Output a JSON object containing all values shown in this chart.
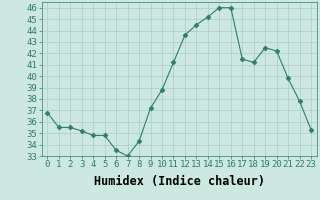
{
  "x": [
    0,
    1,
    2,
    3,
    4,
    5,
    6,
    7,
    8,
    9,
    10,
    11,
    12,
    13,
    14,
    15,
    16,
    17,
    18,
    19,
    20,
    21,
    22,
    23
  ],
  "y": [
    36.8,
    35.5,
    35.5,
    35.2,
    34.8,
    34.8,
    33.5,
    33.0,
    34.3,
    37.2,
    38.8,
    41.2,
    43.6,
    44.5,
    45.2,
    46.0,
    46.0,
    41.5,
    41.2,
    42.5,
    42.2,
    39.8,
    37.8,
    35.3
  ],
  "line_color": "#2e7d6e",
  "marker": "D",
  "marker_size": 2.5,
  "bg_color": "#cce8e0",
  "grid_color": "#aacec8",
  "xlabel": "Humidex (Indice chaleur)",
  "ylim": [
    33,
    46.5
  ],
  "xlim": [
    -0.5,
    23.5
  ],
  "yticks": [
    33,
    34,
    35,
    36,
    37,
    38,
    39,
    40,
    41,
    42,
    43,
    44,
    45,
    46
  ],
  "xticks": [
    0,
    1,
    2,
    3,
    4,
    5,
    6,
    7,
    8,
    9,
    10,
    11,
    12,
    13,
    14,
    15,
    16,
    17,
    18,
    19,
    20,
    21,
    22,
    23
  ],
  "tick_fontsize": 6.5,
  "xlabel_fontsize": 8.5
}
